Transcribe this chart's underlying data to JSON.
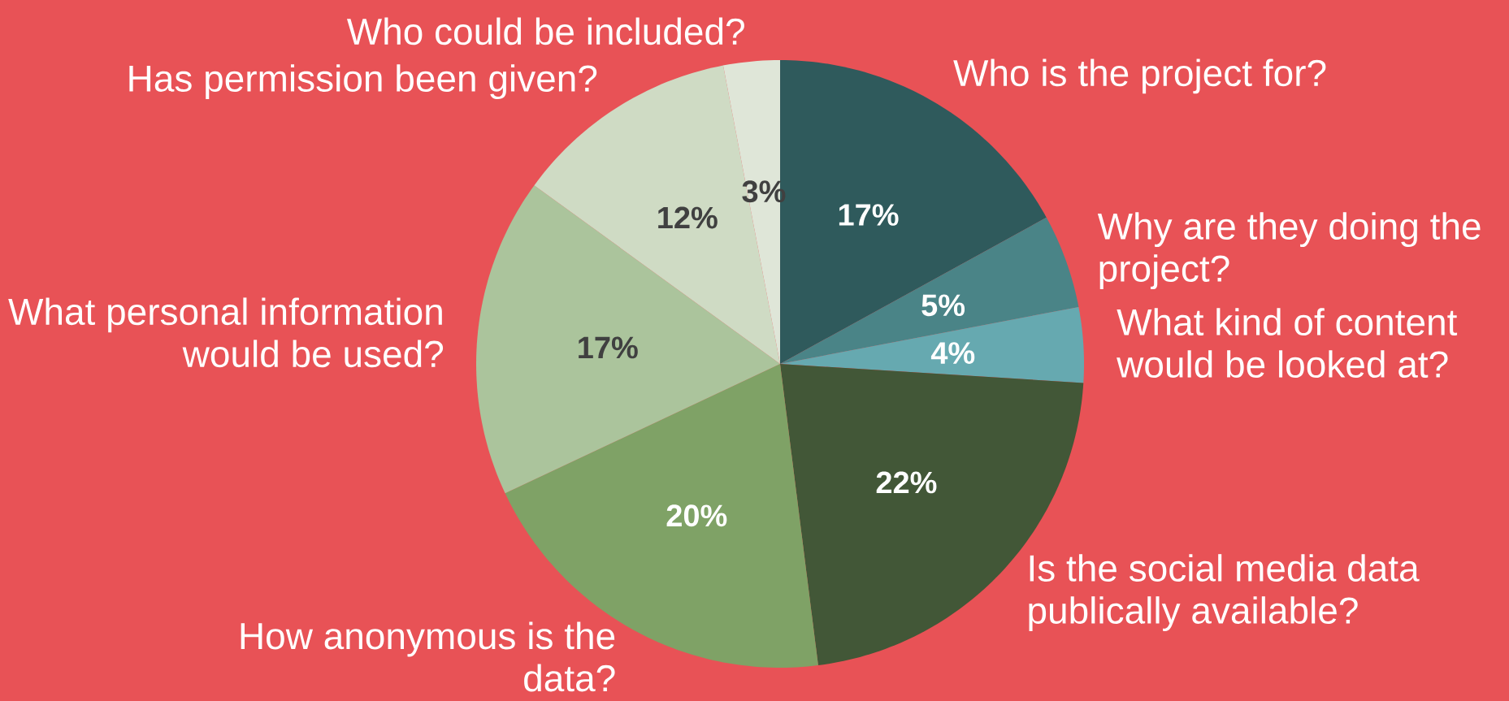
{
  "chart_data": {
    "type": "pie",
    "categories": [
      "Who is the project for?",
      "Why are they doing the project?",
      "What kind of content would be looked at?",
      "Is the social media data publically available?",
      "How anonymous is the data?",
      "What personal information would be used?",
      "Has permission been given?",
      "Who could be included?"
    ],
    "values": [
      17,
      5,
      4,
      22,
      20,
      17,
      12,
      3
    ],
    "value_labels": [
      "17%",
      "5%",
      "4%",
      "22%",
      "20%",
      "17%",
      "12%",
      "3%"
    ],
    "colors": [
      "#2f5a5c",
      "#4a8487",
      "#66a9b0",
      "#425737",
      "#7fa266",
      "#abc49c",
      "#cfdbc4",
      "#dfe6d8"
    ]
  }
}
